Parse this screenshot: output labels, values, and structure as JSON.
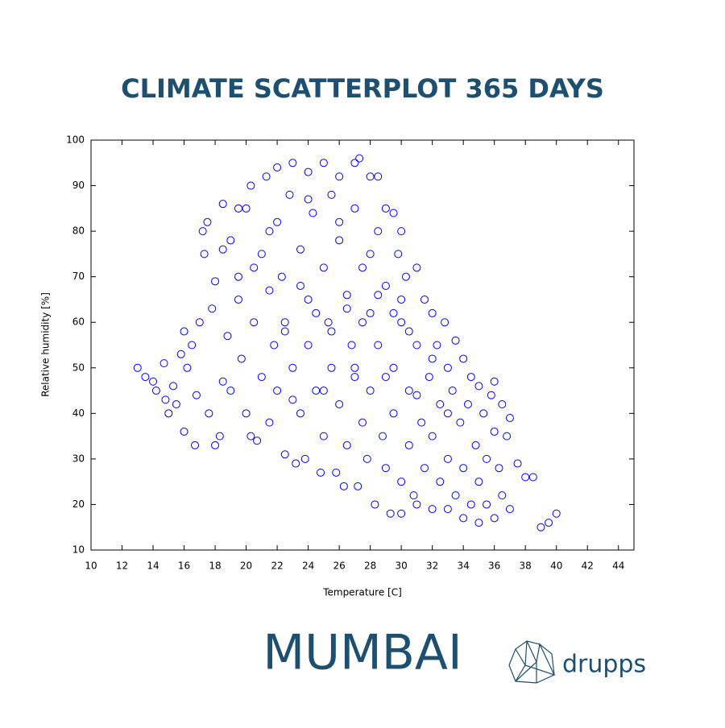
{
  "chart_data": {
    "type": "scatter",
    "title": "CLIMATE SCATTERPLOT 365 DAYS",
    "x_label": "Temperature [C]",
    "y_label": "Relative humidity [%]",
    "city": "MUMBAI",
    "brand": "drupps",
    "color": "#0000ff",
    "xlim": [
      10,
      45
    ],
    "ylim": [
      10,
      100
    ],
    "xticks": [
      10,
      12,
      14,
      16,
      18,
      20,
      22,
      24,
      26,
      28,
      30,
      32,
      34,
      36,
      38,
      40,
      42,
      44
    ],
    "yticks": [
      10,
      20,
      30,
      40,
      50,
      60,
      70,
      80,
      90,
      100
    ],
    "x": [
      13,
      13.5,
      14,
      14.2,
      14.7,
      14.8,
      15,
      15.3,
      15.5,
      15.8,
      16,
      16,
      16.2,
      16.5,
      16.7,
      16.8,
      17,
      17.2,
      17.3,
      17.5,
      17.6,
      17.8,
      18,
      18,
      18.3,
      18.5,
      18.5,
      18.8,
      19,
      19,
      19.5,
      19.5,
      19.7,
      20,
      20,
      20.3,
      20.3,
      20.5,
      20.7,
      21,
      21,
      21.3,
      21.5,
      21.5,
      21.8,
      22,
      22,
      22,
      22.3,
      22.5,
      22.5,
      22.8,
      23,
      23,
      23.2,
      23.5,
      23.5,
      23.8,
      24,
      24,
      24,
      24.3,
      24.5,
      24.8,
      25,
      25,
      25,
      25.3,
      25.5,
      25.5,
      25.8,
      26,
      26,
      26,
      26.3,
      26.5,
      26.5,
      26.8,
      27,
      27,
      27,
      27.2,
      27.3,
      27.5,
      27.5,
      27.8,
      28,
      28,
      28,
      28.3,
      28.5,
      28.5,
      28.5,
      28.8,
      29,
      29,
      29,
      29.3,
      29.5,
      29.5,
      29.5,
      29.8,
      30,
      30,
      30,
      30,
      30.3,
      30.5,
      30.5,
      30.8,
      31,
      31,
      31,
      31.3,
      31.5,
      31.5,
      31.8,
      32,
      32,
      32,
      32.3,
      32.5,
      32.5,
      32.8,
      33,
      33,
      33,
      33.3,
      33.5,
      33.5,
      33.8,
      34,
      34,
      34,
      34.3,
      34.5,
      34.5,
      34.8,
      35,
      35,
      35,
      35.3,
      35.5,
      35.5,
      35.8,
      36,
      36,
      36,
      36.3,
      36.5,
      36.5,
      36.8,
      37,
      37,
      37.5,
      38,
      38.5,
      39,
      39.5,
      40,
      21.5,
      22.5,
      23.5,
      24.5,
      25.5,
      26.5,
      27.5,
      28.5,
      29.5,
      30.5,
      23,
      25,
      27,
      29,
      31,
      33,
      24,
      26,
      28,
      30,
      32,
      20.5,
      19.5,
      18.5
    ],
    "y": [
      50,
      48,
      47,
      45,
      51,
      43,
      40,
      46,
      42,
      53,
      58,
      36,
      50,
      55,
      33,
      44,
      60,
      80,
      75,
      82,
      40,
      63,
      33,
      69,
      35,
      86,
      47,
      57,
      78,
      45,
      85,
      65,
      52,
      40,
      85,
      90,
      35,
      60,
      34,
      75,
      48,
      92,
      67,
      38,
      55,
      94,
      82,
      45,
      70,
      31,
      60,
      88,
      95,
      50,
      29,
      76,
      40,
      30,
      93,
      65,
      55,
      84,
      45,
      27,
      95,
      72,
      35,
      60,
      88,
      50,
      27,
      92,
      78,
      42,
      24,
      66,
      33,
      55,
      95,
      85,
      48,
      24,
      96,
      72,
      38,
      30,
      92,
      62,
      45,
      20,
      92,
      80,
      55,
      35,
      85,
      68,
      28,
      18,
      84,
      50,
      40,
      75,
      80,
      60,
      25,
      18,
      70,
      45,
      33,
      22,
      72,
      55,
      20,
      38,
      65,
      28,
      48,
      62,
      35,
      19,
      55,
      42,
      25,
      60,
      50,
      30,
      19,
      45,
      56,
      22,
      38,
      52,
      28,
      17,
      42,
      48,
      20,
      33,
      46,
      25,
      16,
      40,
      30,
      20,
      44,
      47,
      36,
      17,
      28,
      42,
      22,
      35,
      39,
      19,
      29,
      26,
      26,
      15,
      16,
      18,
      80,
      58,
      68,
      62,
      58,
      63,
      60,
      66,
      62,
      58,
      43,
      45,
      50,
      48,
      44,
      40,
      87,
      82,
      75,
      65,
      52,
      72,
      70,
      76
    ]
  }
}
